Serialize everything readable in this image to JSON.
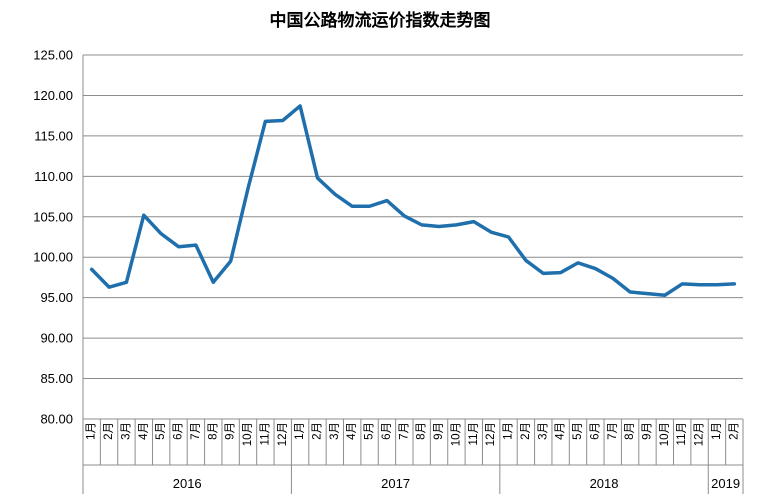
{
  "chart_data": {
    "type": "line",
    "title": "中国公路物流运价指数走势图",
    "ylim": [
      80,
      125
    ],
    "yticks": [
      "80.00",
      "85.00",
      "90.00",
      "95.00",
      "100.00",
      "105.00",
      "110.00",
      "115.00",
      "120.00",
      "125.00"
    ],
    "grid": true,
    "line_color": "#1f6fad",
    "categories": [
      "1月",
      "2月",
      "3月",
      "4月",
      "5月",
      "6月",
      "7月",
      "8月",
      "9月",
      "10月",
      "11月",
      "12月",
      "1月",
      "2月",
      "3月",
      "4月",
      "5月",
      "6月",
      "7月",
      "8月",
      "9月",
      "10月",
      "11月",
      "12月",
      "1月",
      "2月",
      "3月",
      "4月",
      "5月",
      "6月",
      "7月",
      "8月",
      "9月",
      "10月",
      "11月",
      "12月",
      "1月",
      "2月"
    ],
    "years": [
      {
        "label": "2016",
        "start": 0,
        "count": 12
      },
      {
        "label": "2017",
        "start": 12,
        "count": 12
      },
      {
        "label": "2018",
        "start": 24,
        "count": 12
      },
      {
        "label": "2019",
        "start": 36,
        "count": 2
      }
    ],
    "series": [
      {
        "values": [
          98.5,
          96.3,
          96.9,
          105.2,
          102.9,
          101.3,
          101.5,
          96.9,
          99.5,
          108.5,
          116.8,
          116.9,
          118.7,
          109.8,
          107.8,
          106.3,
          106.3,
          107.0,
          105.1,
          104.0,
          103.8,
          104.0,
          104.4,
          103.1,
          102.5,
          99.6,
          98.0,
          98.1,
          99.3,
          98.6,
          97.4,
          95.7,
          95.5,
          95.3,
          96.7,
          96.6,
          96.6,
          96.7
        ]
      }
    ]
  }
}
